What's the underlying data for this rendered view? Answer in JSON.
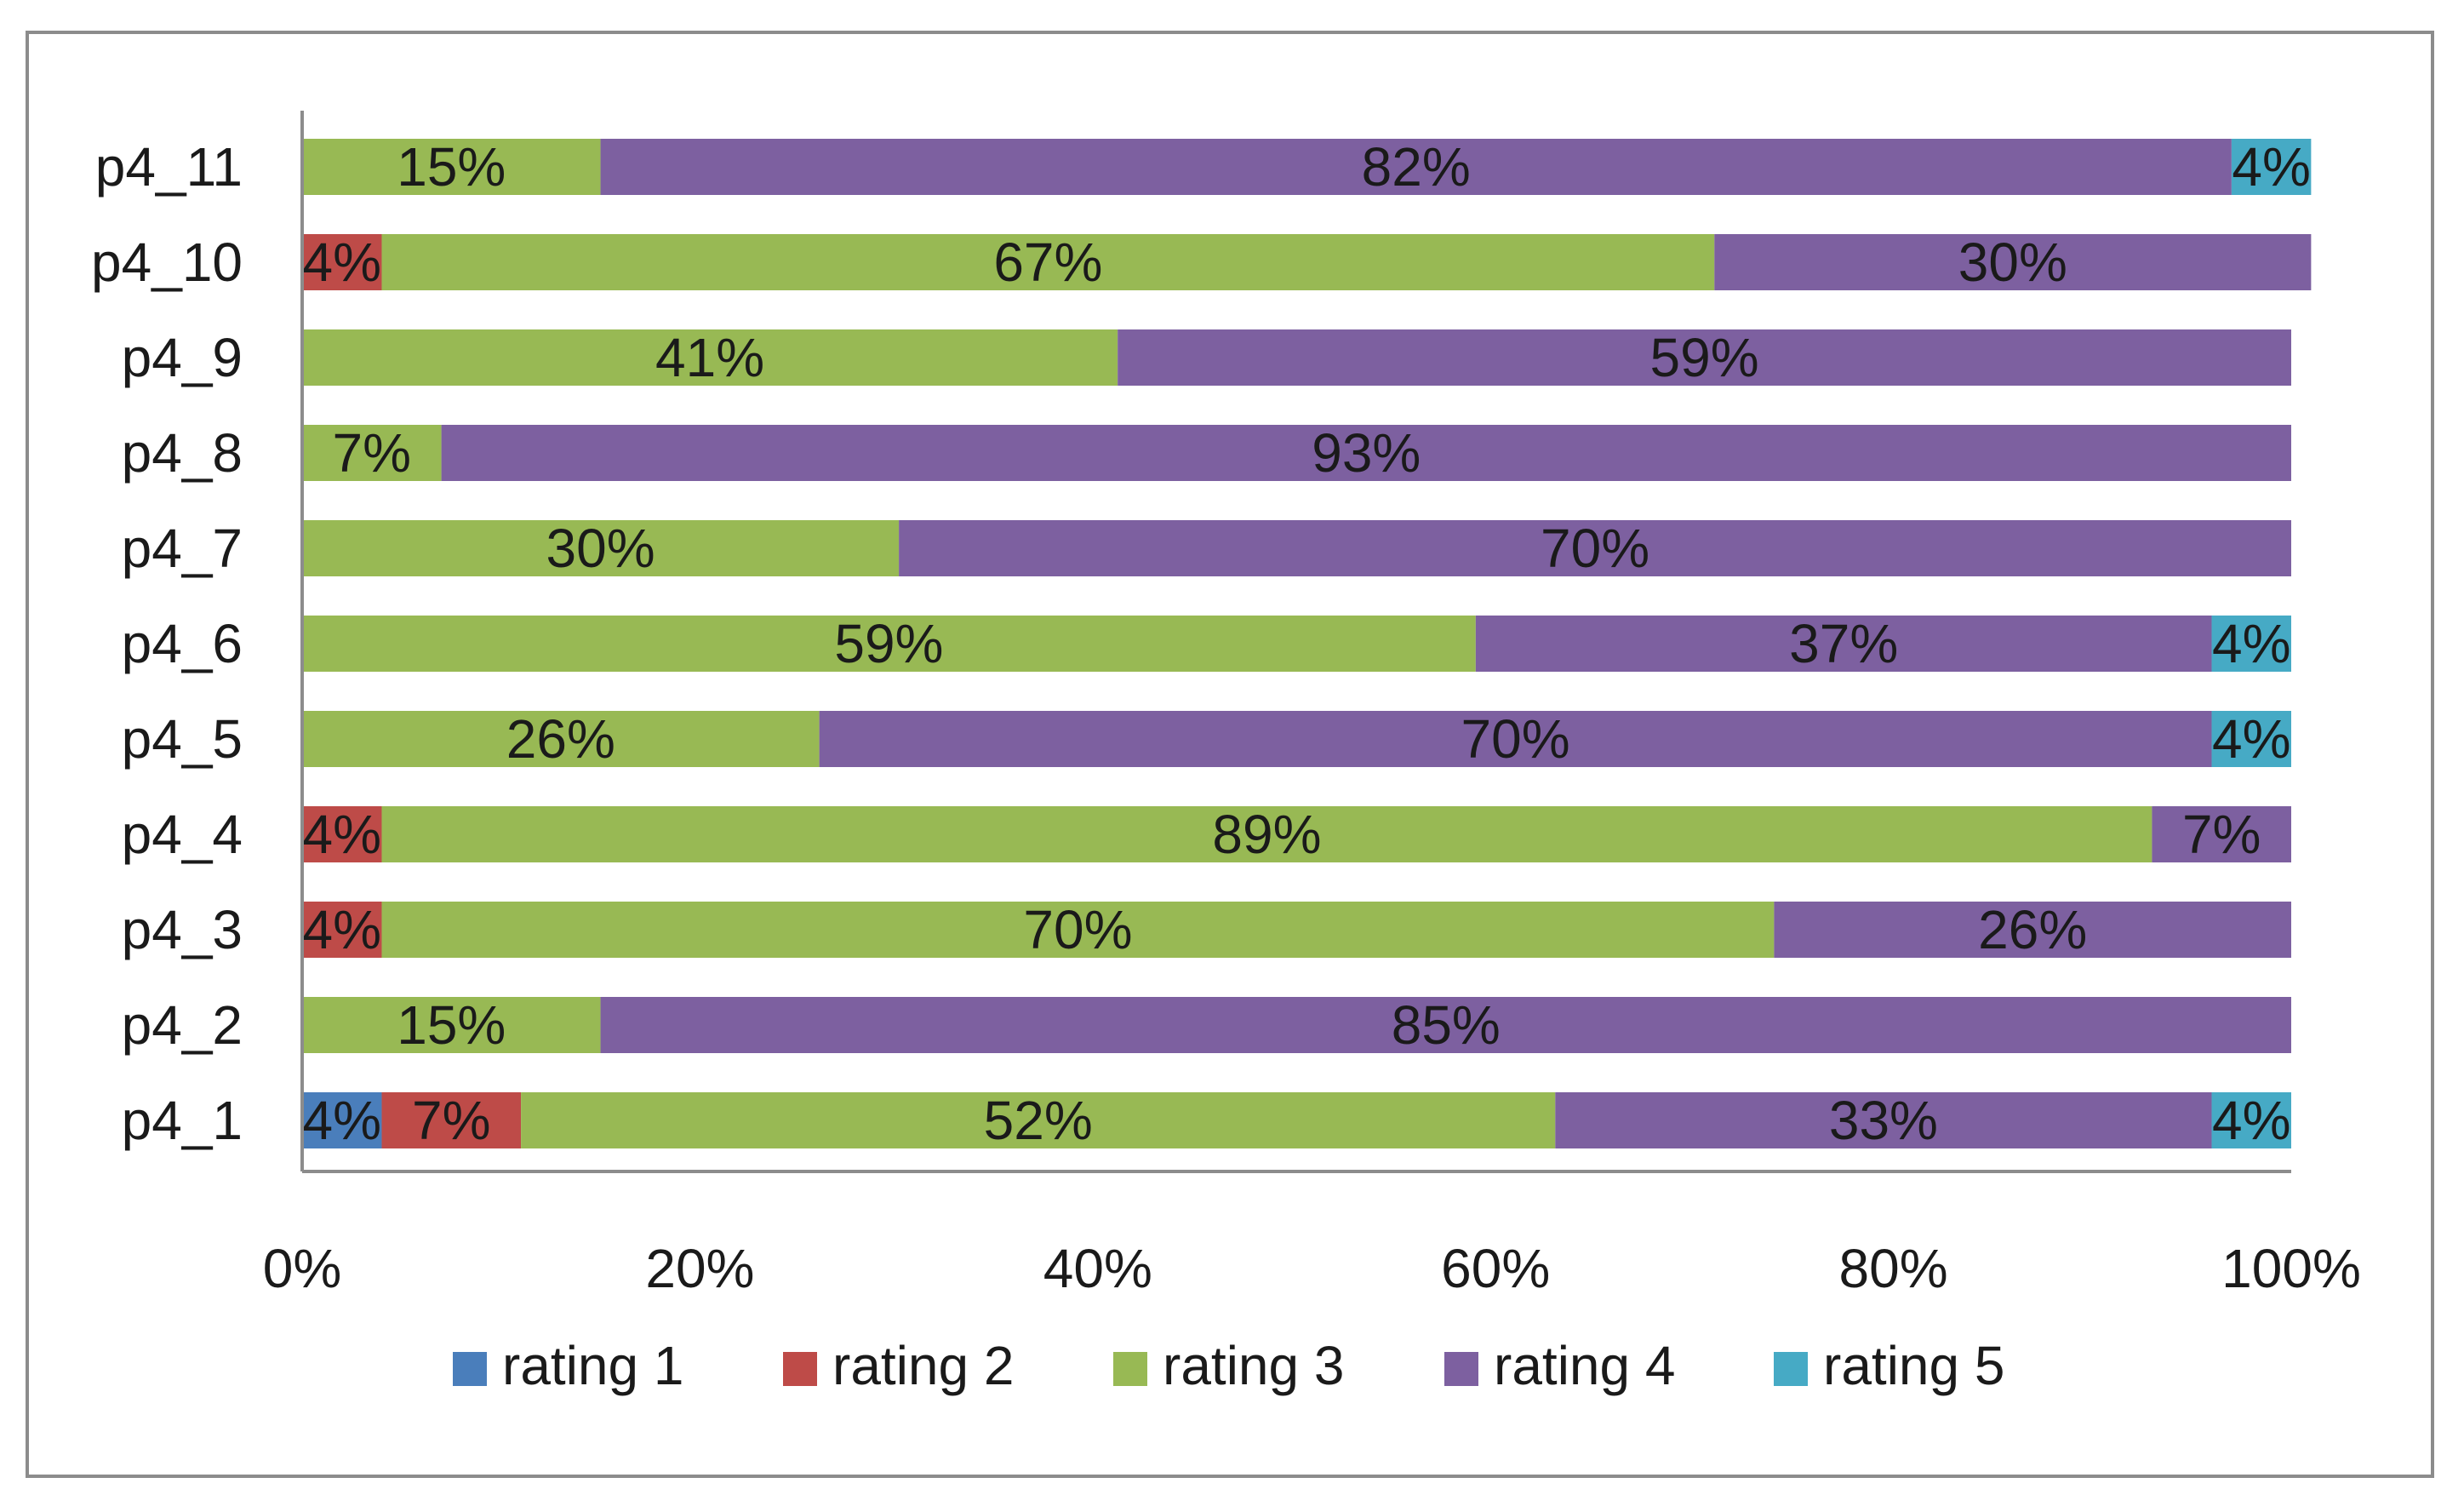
{
  "chart_data": {
    "type": "bar",
    "orientation": "horizontal",
    "stacked": "percent",
    "title": "",
    "xlabel": "",
    "ylabel": "",
    "xlim": [
      0,
      100
    ],
    "grid": false,
    "legend_position": "bottom",
    "categories": [
      "p4_1",
      "p4_2",
      "p4_3",
      "p4_4",
      "p4_5",
      "p4_6",
      "p4_7",
      "p4_8",
      "p4_9",
      "p4_10",
      "p4_11"
    ],
    "x_ticks": [
      "0%",
      "20%",
      "40%",
      "60%",
      "80%",
      "100%"
    ],
    "series": [
      {
        "name": "rating 1",
        "color": "#4a7ebb",
        "values": [
          4,
          0,
          0,
          0,
          0,
          0,
          0,
          0,
          0,
          0,
          0
        ]
      },
      {
        "name": "rating 2",
        "color": "#be4b48",
        "values": [
          7,
          0,
          4,
          4,
          0,
          0,
          0,
          0,
          0,
          4,
          0
        ]
      },
      {
        "name": "rating 3",
        "color": "#98b954",
        "values": [
          52,
          15,
          70,
          89,
          26,
          59,
          30,
          7,
          41,
          67,
          15
        ]
      },
      {
        "name": "rating 4",
        "color": "#7d60a0",
        "values": [
          33,
          85,
          26,
          7,
          70,
          37,
          70,
          93,
          59,
          30,
          82
        ]
      },
      {
        "name": "rating 5",
        "color": "#46aac5",
        "values": [
          4,
          0,
          0,
          0,
          4,
          4,
          0,
          0,
          0,
          0,
          4
        ]
      }
    ],
    "data_label_suffix": "%"
  }
}
